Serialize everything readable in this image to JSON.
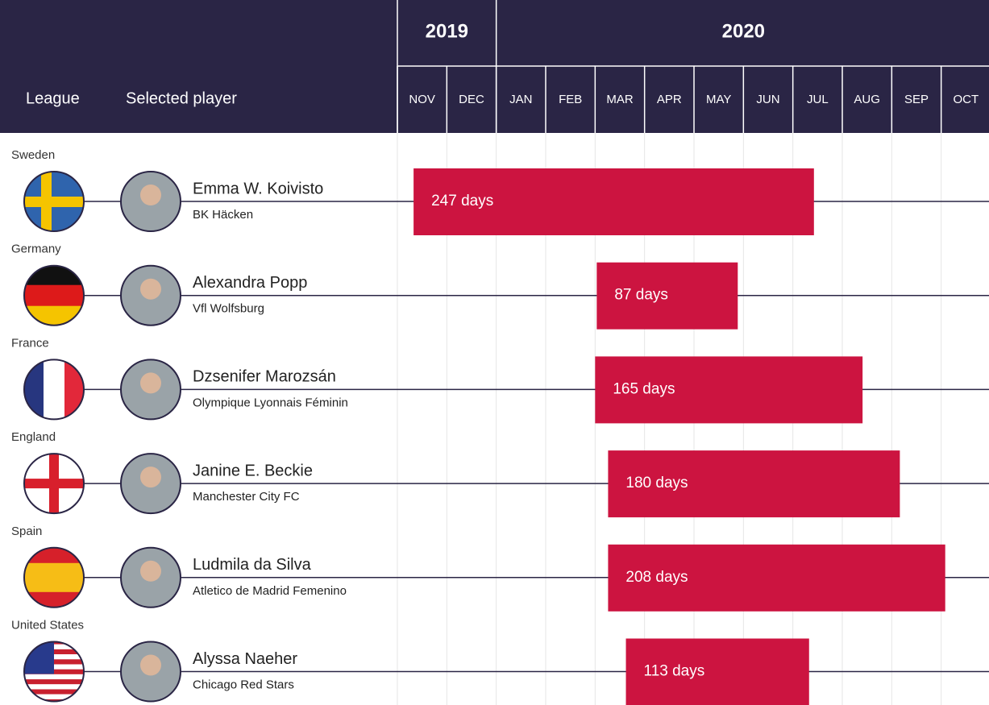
{
  "chart_data": {
    "type": "gantt",
    "header": {
      "league": "League",
      "player": "Selected player"
    },
    "years": [
      {
        "label": "2019",
        "span": 2
      },
      {
        "label": "2020",
        "span": 10
      }
    ],
    "categories": [
      "NOV",
      "DEC",
      "JAN",
      "FEB",
      "MAR",
      "APR",
      "MAY",
      "JUN",
      "JUL",
      "AUG",
      "SEP",
      "OCT"
    ],
    "xlim": [
      0,
      366
    ],
    "color": "#cc1440",
    "rows": [
      {
        "league": "Sweden",
        "player": "Emma W. Koivisto",
        "club": "BK Häcken",
        "start": 10,
        "days": 247,
        "days_label": "247 days"
      },
      {
        "league": "Germany",
        "player": "Alexandra Popp",
        "club": "Vfl Wolfsburg",
        "start": 123,
        "days": 87,
        "days_label": "87 days"
      },
      {
        "league": "France",
        "player": "Dzsenifer Marozsán",
        "club": "Olympique Lyonnais Féminin",
        "start": 122,
        "days": 165,
        "days_label": "165 days"
      },
      {
        "league": "England",
        "player": "Janine E. Beckie",
        "club": "Manchester City FC",
        "start": 130,
        "days": 180,
        "days_label": "180 days"
      },
      {
        "league": "Spain",
        "player": "Ludmila da Silva",
        "club": "Atletico de  Madrid Femenino",
        "start": 130,
        "days": 208,
        "days_label": "208 days"
      },
      {
        "league": "United States",
        "player": "Alyssa Naeher",
        "club": "Chicago Red Stars",
        "start": 141,
        "days": 113,
        "days_label": "113 days"
      }
    ]
  }
}
